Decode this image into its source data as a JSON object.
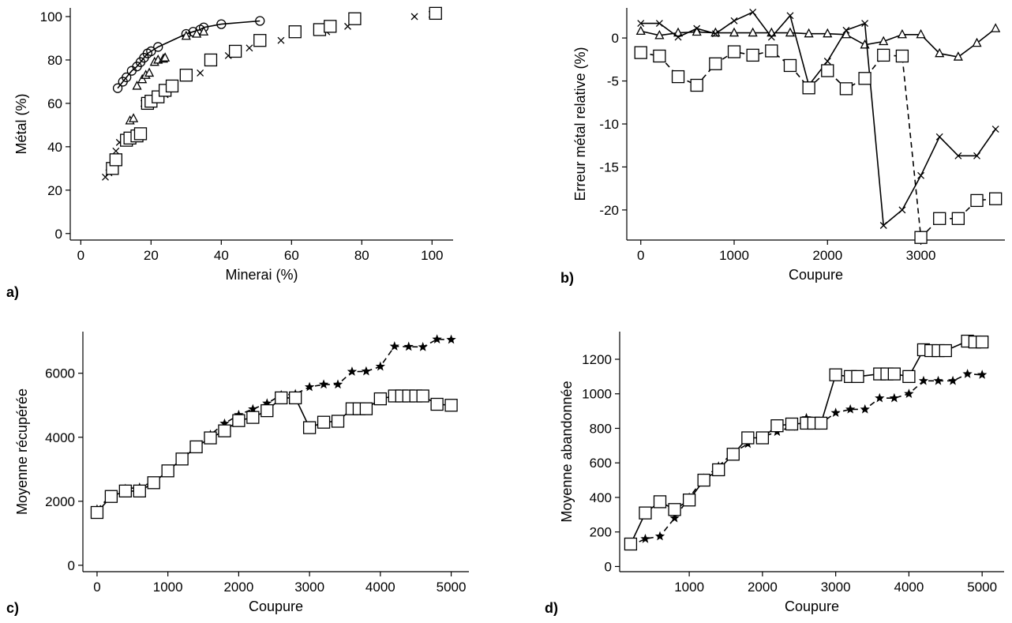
{
  "chart_data": [
    {
      "id": "a",
      "panel_label": "a)",
      "type": "scatter",
      "xlabel": "Minerai (%)",
      "ylabel": "Métal (%)",
      "xlim": [
        -3,
        106
      ],
      "ylim": [
        -3,
        104
      ],
      "xticks": [
        0,
        20,
        40,
        60,
        80,
        100
      ],
      "yticks": [
        0,
        20,
        40,
        60,
        80,
        100
      ],
      "series": [
        {
          "marker": "circle",
          "line": "solid",
          "x": [
            10.5,
            12,
            13,
            14.5,
            16,
            17,
            18,
            19,
            20,
            22,
            30,
            32,
            34,
            35,
            40,
            51
          ],
          "y": [
            67,
            70,
            72,
            75,
            77,
            79,
            81,
            83,
            84,
            86,
            92,
            93,
            94,
            95,
            96.5,
            98
          ]
        },
        {
          "marker": "triangle",
          "line": "none",
          "x": [
            14,
            15,
            16,
            17.5,
            18.5,
            19.5,
            21,
            22,
            23.5,
            24,
            30,
            33,
            35
          ],
          "y": [
            52,
            53,
            68,
            71,
            73,
            74,
            79,
            80,
            80.5,
            81,
            91,
            92,
            93
          ]
        },
        {
          "marker": "cross",
          "line": "none",
          "x": [
            7,
            8,
            10,
            11,
            13,
            18,
            24,
            30,
            34,
            42,
            48,
            57,
            70,
            76,
            95,
            100
          ],
          "y": [
            26,
            28,
            38,
            42,
            44,
            60,
            64,
            73,
            74,
            82,
            85.5,
            89,
            93,
            95.5,
            100,
            101
          ]
        },
        {
          "marker": "square",
          "line": "none",
          "x": [
            9,
            10,
            13,
            14,
            16,
            17,
            19,
            20,
            22,
            24,
            26,
            30,
            37,
            44,
            51,
            61,
            68,
            71,
            78,
            101
          ],
          "y": [
            30,
            34,
            43,
            44,
            45,
            46,
            60,
            61,
            63,
            66,
            68,
            73,
            80,
            84,
            89,
            93,
            94,
            95.5,
            99,
            101.5
          ]
        }
      ]
    },
    {
      "id": "b",
      "panel_label": "b)",
      "type": "line",
      "xlabel": "Coupure",
      "ylabel": "Erreur métal relative (%)",
      "xlim": [
        -150,
        3900
      ],
      "ylim": [
        -23.5,
        3.5
      ],
      "xticks": [
        0,
        1000,
        2000,
        3000
      ],
      "yticks": [
        0,
        -5,
        -10,
        -15,
        -20
      ],
      "series": [
        {
          "marker": "triangle",
          "line": "solid",
          "x": [
            0,
            200,
            400,
            600,
            800,
            1000,
            1200,
            1400,
            1600,
            1800,
            2000,
            2200,
            2400,
            2600,
            2800,
            3000,
            3200,
            3400,
            3600,
            3800
          ],
          "y": [
            0.8,
            0.3,
            0.6,
            0.7,
            0.6,
            0.6,
            0.6,
            0.6,
            0.6,
            0.5,
            0.5,
            0.4,
            -0.8,
            -0.4,
            0.4,
            0.4,
            -1.8,
            -2.2,
            -0.6,
            1.1
          ]
        },
        {
          "marker": "cross",
          "line": "solid",
          "x": [
            0,
            200,
            400,
            600,
            800,
            1000,
            1200,
            1400,
            1600,
            1800,
            2000,
            2200,
            2400,
            2600,
            2800,
            3000,
            3200,
            3400,
            3600,
            3800
          ],
          "y": [
            1.7,
            1.7,
            0.1,
            1.1,
            0.5,
            2.0,
            3.0,
            0.1,
            2.6,
            -5.5,
            -2.7,
            0.9,
            1.7,
            -21.8,
            -20.0,
            -16.0,
            -11.5,
            -13.7,
            -13.7,
            -10.6
          ]
        },
        {
          "marker": "square",
          "line": "dashed",
          "x": [
            0,
            200,
            400,
            600,
            800,
            1000,
            1200,
            1400,
            1600,
            1800,
            2000,
            2200,
            2400,
            2600,
            2800,
            3000,
            3200,
            3400,
            3600,
            3800
          ],
          "y": [
            -1.7,
            -2.1,
            -4.5,
            -5.5,
            -3.0,
            -1.6,
            -2.0,
            -1.5,
            -3.2,
            -5.8,
            -3.8,
            -5.9,
            -4.7,
            -2.0,
            -2.1,
            -23.2,
            -21.0,
            -21.0,
            -18.9,
            -18.7
          ]
        }
      ]
    },
    {
      "id": "c",
      "panel_label": "c)",
      "type": "line",
      "xlabel": "Coupure",
      "ylabel": "Moyenne récupérée",
      "xlim": [
        -200,
        5250
      ],
      "ylim": [
        -200,
        7300
      ],
      "xticks": [
        0,
        1000,
        2000,
        3000,
        4000,
        5000
      ],
      "yticks": [
        0,
        2000,
        4000,
        6000
      ],
      "series": [
        {
          "marker": "star",
          "line": "dashed",
          "x": [
            0,
            200,
            400,
            600,
            800,
            1000,
            1200,
            1400,
            1600,
            1800,
            2000,
            2200,
            2400,
            2600,
            2800,
            3000,
            3200,
            3400,
            3600,
            3800,
            4000,
            4200,
            4400,
            4600,
            4800,
            5000
          ],
          "y": [
            1750,
            2180,
            2390,
            2430,
            2620,
            2970,
            3360,
            3740,
            4080,
            4430,
            4700,
            4880,
            5060,
            5320,
            5350,
            5570,
            5650,
            5650,
            6050,
            6060,
            6210,
            6840,
            6830,
            6820,
            7060,
            7050
          ]
        },
        {
          "marker": "square",
          "line": "solid",
          "x": [
            0,
            200,
            400,
            600,
            800,
            1000,
            1200,
            1400,
            1600,
            1800,
            2000,
            2200,
            2400,
            2600,
            2800,
            3000,
            3200,
            3400,
            3600,
            3700,
            3800,
            4000,
            4200,
            4300,
            4400,
            4500,
            4600,
            4800,
            5000
          ],
          "y": [
            1650,
            2150,
            2320,
            2320,
            2580,
            2950,
            3320,
            3700,
            3980,
            4200,
            4520,
            4620,
            4830,
            5230,
            5230,
            4300,
            4470,
            4500,
            4890,
            4890,
            4890,
            5200,
            5290,
            5290,
            5290,
            5290,
            5290,
            5030,
            5000
          ]
        }
      ]
    },
    {
      "id": "d",
      "panel_label": "d)",
      "type": "line",
      "xlabel": "Coupure",
      "ylabel": "Moyenne abandonnée",
      "xlim": [
        50,
        5300
      ],
      "ylim": [
        -30,
        1360
      ],
      "xticks": [
        1000,
        2000,
        3000,
        4000,
        5000
      ],
      "yticks": [
        0,
        200,
        400,
        600,
        800,
        1000,
        1200
      ],
      "series": [
        {
          "marker": "star",
          "line": "dashed",
          "x": [
            200,
            400,
            600,
            800,
            1000,
            1200,
            1400,
            1600,
            1800,
            2000,
            2200,
            2400,
            2600,
            2800,
            3000,
            3200,
            3400,
            3600,
            3800,
            4000,
            4200,
            4400,
            4600,
            4800,
            5000
          ],
          "y": [
            120,
            160,
            175,
            280,
            400,
            510,
            580,
            660,
            710,
            750,
            780,
            810,
            860,
            830,
            890,
            910,
            910,
            975,
            975,
            1000,
            1075,
            1075,
            1075,
            1115,
            1110
          ]
        },
        {
          "marker": "square",
          "line": "solid",
          "x": [
            200,
            400,
            600,
            800,
            1000,
            1200,
            1400,
            1600,
            1800,
            2000,
            2200,
            2400,
            2600,
            2700,
            2800,
            3000,
            3200,
            3300,
            3600,
            3700,
            3800,
            4000,
            4200,
            4300,
            4400,
            4500,
            4800,
            4900,
            5000
          ],
          "y": [
            130,
            310,
            375,
            330,
            385,
            500,
            560,
            650,
            745,
            745,
            815,
            825,
            830,
            830,
            830,
            1110,
            1100,
            1100,
            1115,
            1115,
            1115,
            1100,
            1255,
            1250,
            1250,
            1250,
            1305,
            1300,
            1300
          ]
        }
      ]
    }
  ]
}
